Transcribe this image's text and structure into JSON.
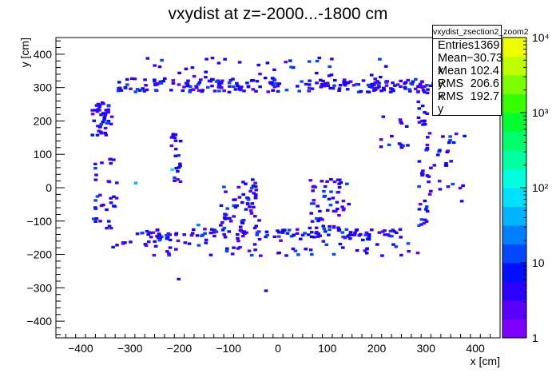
{
  "chart_data": {
    "type": "heatmap",
    "title": "vxydist at z=-2000...-1800 cm",
    "xlabel": "x [cm]",
    "ylabel": "y [cm]",
    "xlim": [
      -450,
      450
    ],
    "ylim": [
      -450,
      450
    ],
    "x_ticks": [
      -400,
      -300,
      -200,
      -100,
      0,
      100,
      200,
      300,
      400
    ],
    "y_ticks": [
      -400,
      -300,
      -200,
      -100,
      0,
      100,
      200,
      300,
      400
    ],
    "z_scale": "log",
    "zlim": [
      1,
      10000
    ],
    "z_tick_labels": [
      "1",
      "10",
      "10²",
      "10³",
      "10⁴"
    ],
    "palette": [
      "#7e00ff",
      "#5a00ff",
      "#2c00ff",
      "#0010ff",
      "#0048ff",
      "#0080ff",
      "#00b4ff",
      "#00e0ff",
      "#00ffdc",
      "#00ffa0",
      "#00ff6a",
      "#00ff30",
      "#38ff00",
      "#7cff00",
      "#c0ff00",
      "#f0ff00"
    ],
    "stats": {
      "name": "vxydist_zsection2_zoom2",
      "entries": {
        "label": "Entries",
        "value": "1369"
      },
      "mean_x": {
        "label": "Mean x",
        "value": "−30.73"
      },
      "mean_y": {
        "label": "Mean y",
        "value": "102.4"
      },
      "rms_x": {
        "label": "RMS x",
        "value": "206.6"
      },
      "rms_y": {
        "label": "RMS y",
        "value": "192.7"
      }
    }
  }
}
